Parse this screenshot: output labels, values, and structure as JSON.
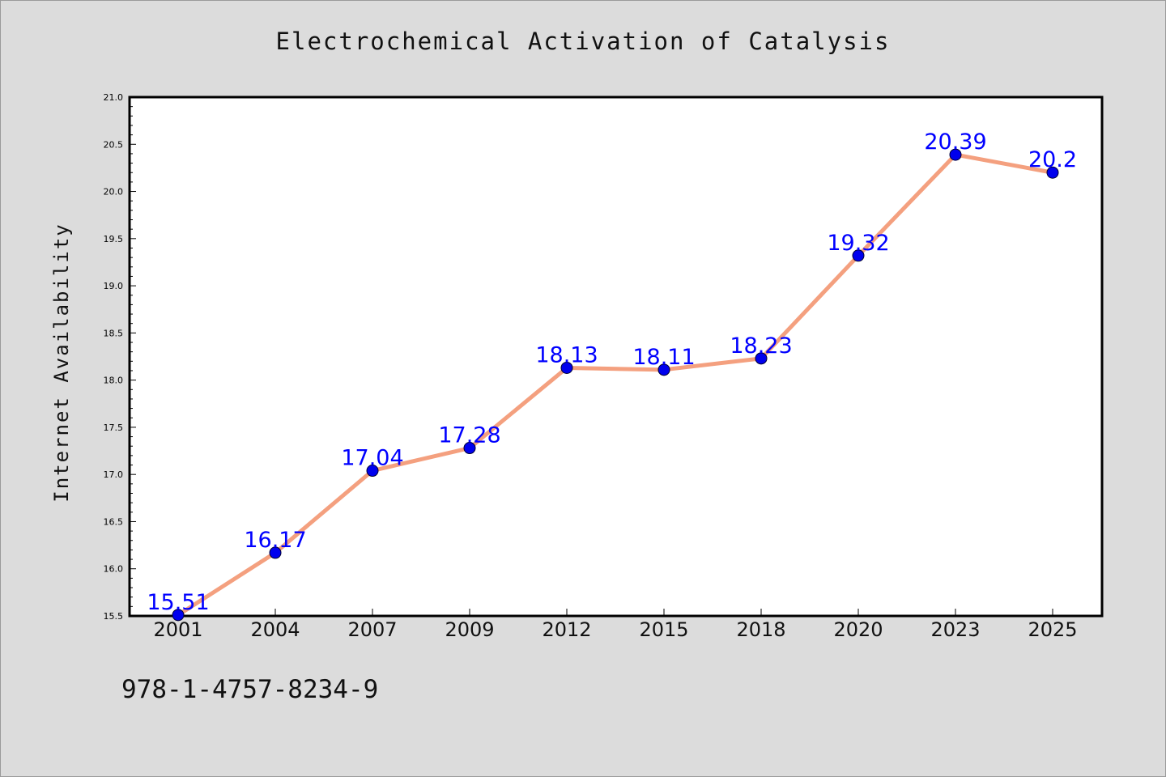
{
  "chart_data": {
    "type": "line",
    "title": "Electrochemical Activation of Catalysis",
    "xlabel": "",
    "ylabel": "Internet Availability",
    "categories": [
      "2001",
      "2004",
      "2007",
      "2009",
      "2012",
      "2015",
      "2018",
      "2020",
      "2023",
      "2025"
    ],
    "series": [
      {
        "values": [
          15.51,
          16.17,
          17.04,
          17.28,
          18.13,
          18.11,
          18.23,
          19.32,
          20.39,
          20.2
        ],
        "data_labels": [
          "15.51",
          "16.17",
          "17.04",
          "17.28",
          "18.13",
          "18.11",
          "18.23",
          "19.32",
          "20.39",
          "20.2"
        ]
      }
    ],
    "ylim": [
      15.5,
      21.0
    ],
    "yticks": [
      "15.5",
      "16.0",
      "16.5",
      "17.0",
      "17.5",
      "18.0",
      "18.5",
      "19.0",
      "19.5",
      "20.0",
      "20.5",
      "21.0"
    ],
    "grid": false,
    "colors": {
      "line": "#f4a07f",
      "marker": "#0000ee",
      "label": "#0000ff",
      "background": "#dcdcdc",
      "plot_bg": "#ffffff"
    }
  },
  "footer": {
    "code": "978-1-4757-8234-9"
  }
}
